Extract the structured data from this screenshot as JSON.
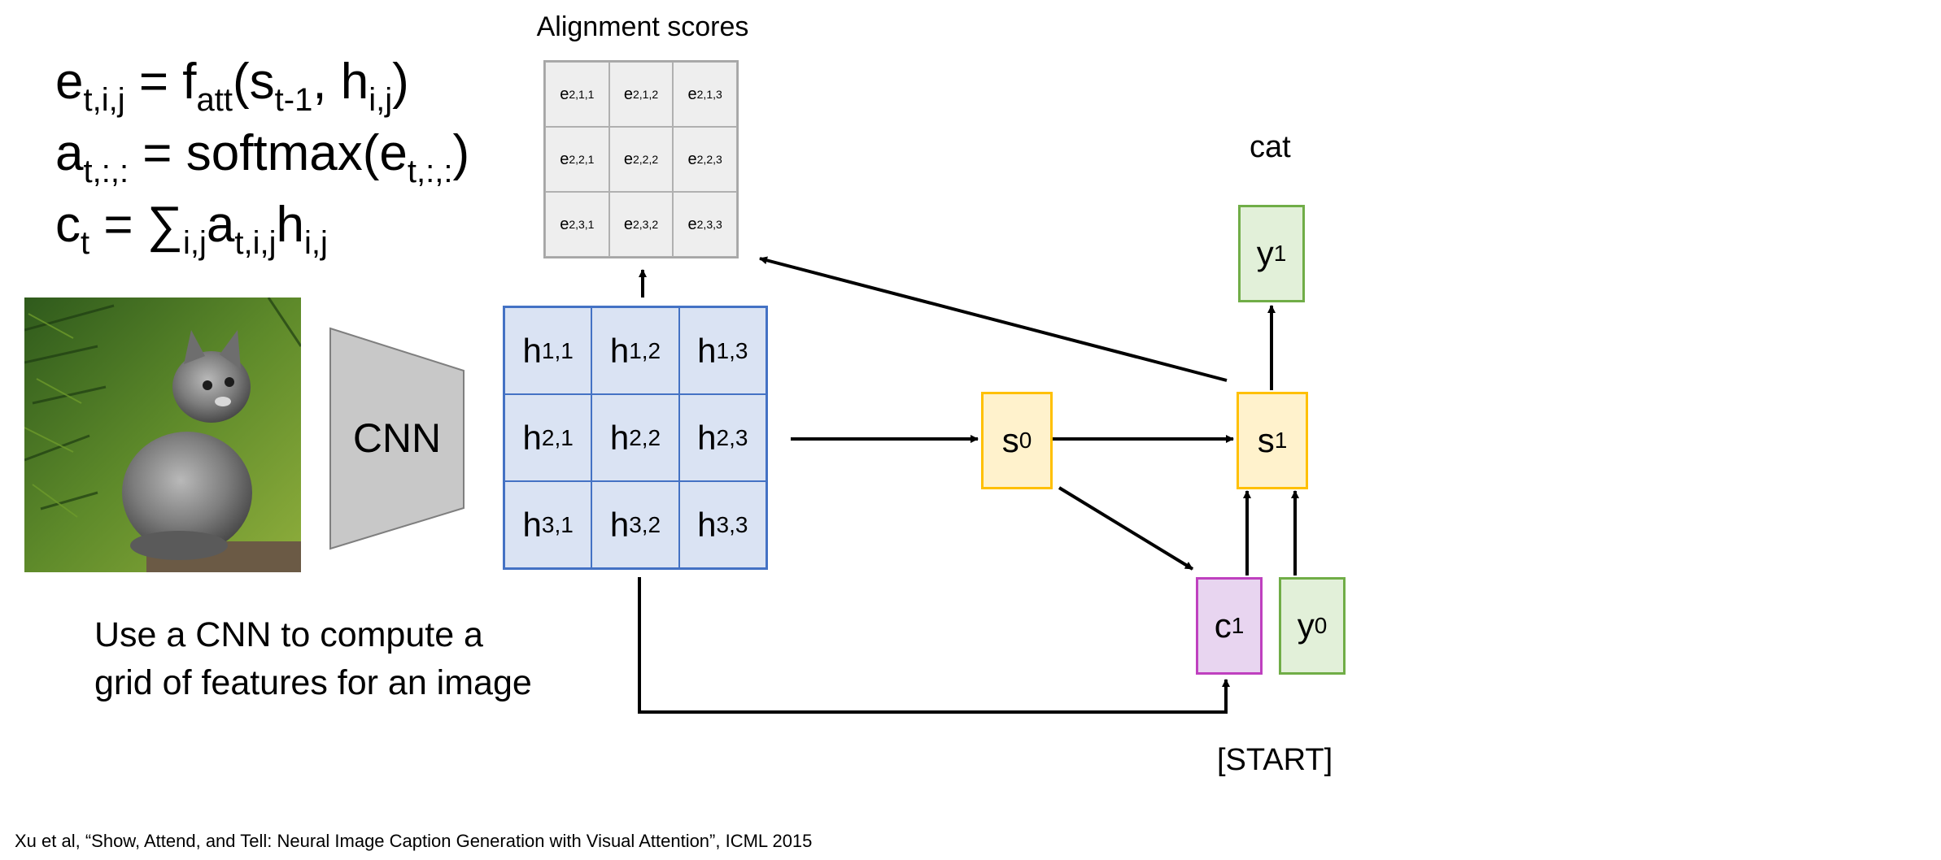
{
  "equations": {
    "e_base": "e",
    "e_sub": "t,i,j",
    "e_rhs_f": " = f",
    "e_rhs_sub": "att",
    "e_rhs_open": "(s",
    "e_rhs_s_sub": "t-1",
    "e_rhs_h": ", h",
    "e_rhs_h_sub": "i,j",
    "e_rhs_close": ")",
    "a_base": "a",
    "a_sub": "t,:,:",
    "a_rhs": " = softmax(e",
    "a_rhs_sub": "t,:,:",
    "a_rhs_close": ")",
    "c_base": "c",
    "c_sub": "t",
    "c_rhs": " = ∑",
    "c_sum_sub": "i,j",
    "c_a": "a",
    "c_a_sub": "t,i,j",
    "c_h": "h",
    "c_h_sub": "i,j"
  },
  "alignment": {
    "title": "Alignment scores",
    "cells": [
      {
        "base": "e",
        "sub": "2,1,1"
      },
      {
        "base": "e",
        "sub": "2,1,2"
      },
      {
        "base": "e",
        "sub": "2,1,3"
      },
      {
        "base": "e",
        "sub": "2,2,1"
      },
      {
        "base": "e",
        "sub": "2,2,2"
      },
      {
        "base": "e",
        "sub": "2,2,3"
      },
      {
        "base": "e",
        "sub": "2,3,1"
      },
      {
        "base": "e",
        "sub": "2,3,2"
      },
      {
        "base": "e",
        "sub": "2,3,3"
      }
    ]
  },
  "features": {
    "cells": [
      {
        "base": "h",
        "sub": "1,1"
      },
      {
        "base": "h",
        "sub": "1,2"
      },
      {
        "base": "h",
        "sub": "1,3"
      },
      {
        "base": "h",
        "sub": "2,1"
      },
      {
        "base": "h",
        "sub": "2,2"
      },
      {
        "base": "h",
        "sub": "2,3"
      },
      {
        "base": "h",
        "sub": "3,1"
      },
      {
        "base": "h",
        "sub": "3,2"
      },
      {
        "base": "h",
        "sub": "3,3"
      }
    ]
  },
  "cnn": {
    "label": "CNN"
  },
  "nodes": {
    "s0": {
      "base": "s",
      "sub": "0"
    },
    "s1": {
      "base": "s",
      "sub": "1"
    },
    "y1": {
      "base": "y",
      "sub": "1"
    },
    "c1": {
      "base": "c",
      "sub": "1"
    },
    "y0": {
      "base": "y",
      "sub": "0"
    }
  },
  "labels": {
    "output_word": "cat",
    "start_token": "[START]"
  },
  "caption": {
    "line1": "Use a CNN to compute a",
    "line2": "grid of features for an image"
  },
  "citation": "Xu et al, “Show, Attend, and Tell: Neural Image Caption Generation with Visual Attention”, ICML 2015",
  "colors": {
    "feature_fill": "#dae3f3",
    "feature_border": "#4472c4",
    "hidden_fill": "#fff2cc",
    "hidden_border": "#ffc000",
    "output_fill": "#e2f0d9",
    "output_border": "#70ad47",
    "context_fill": "#e8d5f0",
    "context_border": "#bf40bf",
    "score_fill": "#eeeeee",
    "cnn_fill": "#c8c8c8"
  },
  "icons": {
    "input_image": "kitten-photo",
    "cnn": "trapezoid-cnn-icon"
  }
}
